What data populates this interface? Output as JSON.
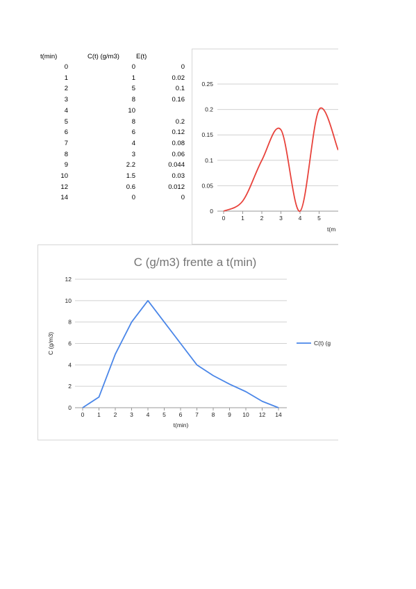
{
  "table": {
    "headers": [
      "t(min)",
      "C(t) (g/m3)",
      "E(t)"
    ],
    "rows": [
      [
        "0",
        "0",
        "0"
      ],
      [
        "1",
        "1",
        "0.02"
      ],
      [
        "2",
        "5",
        "0.1"
      ],
      [
        "3",
        "8",
        "0.16"
      ],
      [
        "4",
        "10",
        ""
      ],
      [
        "5",
        "8",
        "0.2"
      ],
      [
        "6",
        "6",
        "0.12"
      ],
      [
        "7",
        "4",
        "0.08"
      ],
      [
        "8",
        "3",
        "0.06"
      ],
      [
        "9",
        "2.2",
        "0.044"
      ],
      [
        "10",
        "1.5",
        "0.03"
      ],
      [
        "12",
        "0.6",
        "0.012"
      ],
      [
        "14",
        "0",
        "0"
      ]
    ]
  },
  "chart_data": [
    {
      "type": "line",
      "title": "",
      "xlabel": "t(m",
      "ylabel": "",
      "categories": [
        "0",
        "1",
        "2",
        "3",
        "4",
        "5"
      ],
      "series": [
        {
          "values": [
            0,
            0.02,
            0.1,
            0.16,
            0,
            0.2
          ],
          "color": "#e8423b",
          "smooth": true
        }
      ],
      "ylim": [
        0,
        0.25
      ],
      "yticks": [
        "0",
        "0.05",
        "0.1",
        "0.15",
        "0.2",
        "0.25"
      ],
      "grid": true
    },
    {
      "type": "line",
      "title": "C (g/m3) frente a t(min)",
      "xlabel": "t(min)",
      "ylabel": "C (g/m3)",
      "categories": [
        "0",
        "1",
        "2",
        "3",
        "4",
        "5",
        "6",
        "7",
        "8",
        "9",
        "10",
        "12",
        "14"
      ],
      "series": [
        {
          "name": "C(t) (g",
          "values": [
            0,
            1,
            5,
            8,
            10,
            8,
            6,
            4,
            3,
            2.2,
            1.5,
            0.6,
            0
          ],
          "color": "#4a86e8"
        }
      ],
      "ylim": [
        0,
        12
      ],
      "yticks": [
        "0",
        "2",
        "4",
        "6",
        "8",
        "10",
        "12"
      ],
      "grid": true,
      "legend": "right"
    }
  ]
}
